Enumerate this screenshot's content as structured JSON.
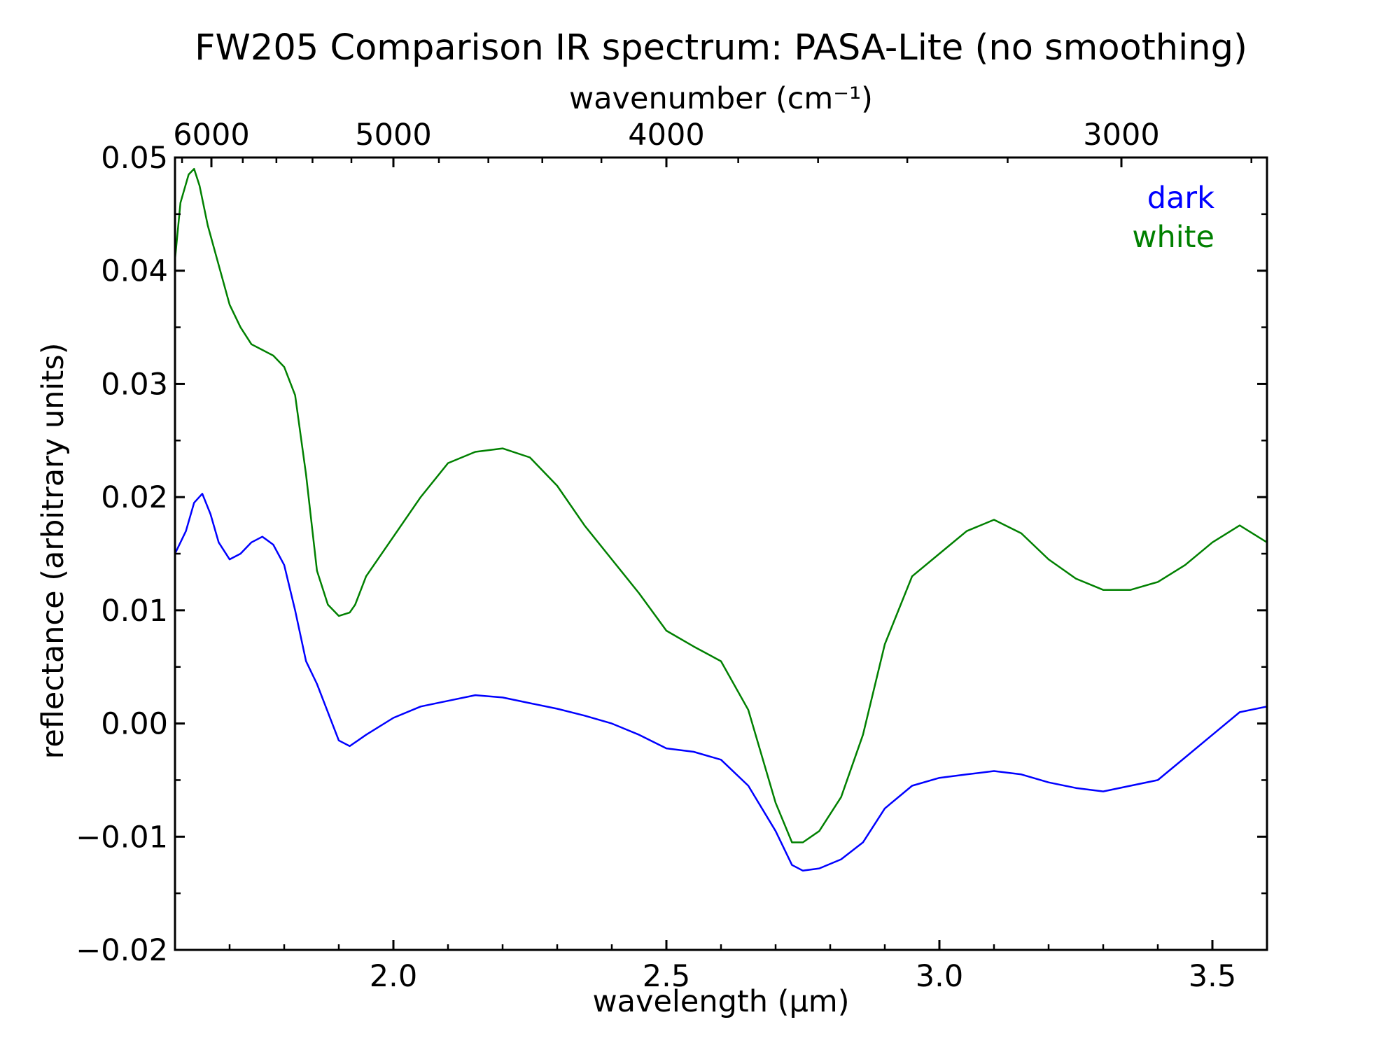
{
  "chart_data": {
    "type": "line",
    "title": "FW205 Comparison IR spectrum: PASA-Lite (no smoothing)",
    "xlabel": "wavelength (μm)",
    "ylabel": "reflectance (arbitrary units)",
    "top_xlabel": "wavenumber (cm⁻¹)",
    "xlim": [
      1.6,
      3.6
    ],
    "ylim": [
      -0.02,
      0.05
    ],
    "x_ticks": [
      {
        "value": 2.0,
        "label": "2.0"
      },
      {
        "value": 2.5,
        "label": "2.5"
      },
      {
        "value": 3.0,
        "label": "3.0"
      },
      {
        "value": 3.5,
        "label": "3.5"
      }
    ],
    "y_ticks": [
      {
        "value": -0.02,
        "label": "−0.02"
      },
      {
        "value": -0.01,
        "label": "−0.01"
      },
      {
        "value": 0.0,
        "label": "0.00"
      },
      {
        "value": 0.01,
        "label": "0.01"
      },
      {
        "value": 0.02,
        "label": "0.02"
      },
      {
        "value": 0.03,
        "label": "0.03"
      },
      {
        "value": 0.04,
        "label": "0.04"
      },
      {
        "value": 0.05,
        "label": "0.05"
      }
    ],
    "top_ticks": [
      {
        "value": 6000,
        "label": "6000"
      },
      {
        "value": 5000,
        "label": "5000"
      },
      {
        "value": 4000,
        "label": "4000"
      },
      {
        "value": 3000,
        "label": "3000"
      }
    ],
    "legend_placement": "top-right",
    "grid": false,
    "series": [
      {
        "name": "dark",
        "color": "#0000ff",
        "x": [
          1.6,
          1.62,
          1.635,
          1.65,
          1.665,
          1.68,
          1.7,
          1.72,
          1.74,
          1.76,
          1.78,
          1.8,
          1.82,
          1.84,
          1.86,
          1.88,
          1.9,
          1.92,
          1.95,
          2.0,
          2.05,
          2.1,
          2.15,
          2.2,
          2.25,
          2.3,
          2.35,
          2.4,
          2.45,
          2.5,
          2.55,
          2.6,
          2.65,
          2.7,
          2.73,
          2.75,
          2.78,
          2.82,
          2.86,
          2.9,
          2.95,
          3.0,
          3.05,
          3.1,
          3.15,
          3.2,
          3.25,
          3.3,
          3.35,
          3.4,
          3.45,
          3.5,
          3.55,
          3.6
        ],
        "y": [
          0.015,
          0.017,
          0.0195,
          0.0203,
          0.0185,
          0.016,
          0.0145,
          0.015,
          0.016,
          0.0165,
          0.0158,
          0.014,
          0.01,
          0.0055,
          0.0035,
          0.001,
          -0.0015,
          -0.002,
          -0.001,
          0.0005,
          0.0015,
          0.002,
          0.0025,
          0.0023,
          0.0018,
          0.0013,
          0.0007,
          0.0,
          -0.001,
          -0.0022,
          -0.0025,
          -0.0032,
          -0.0055,
          -0.0095,
          -0.0125,
          -0.013,
          -0.0128,
          -0.012,
          -0.0105,
          -0.0075,
          -0.0055,
          -0.0048,
          -0.0045,
          -0.0042,
          -0.0045,
          -0.0052,
          -0.0057,
          -0.006,
          -0.0055,
          -0.005,
          -0.003,
          -0.001,
          0.001,
          0.0015
        ]
      },
      {
        "name": "white",
        "color": "#008000",
        "x": [
          1.6,
          1.61,
          1.625,
          1.635,
          1.645,
          1.66,
          1.68,
          1.7,
          1.72,
          1.74,
          1.76,
          1.78,
          1.8,
          1.82,
          1.84,
          1.86,
          1.88,
          1.9,
          1.92,
          1.93,
          1.95,
          2.0,
          2.05,
          2.1,
          2.15,
          2.2,
          2.25,
          2.3,
          2.35,
          2.4,
          2.45,
          2.5,
          2.55,
          2.6,
          2.65,
          2.7,
          2.73,
          2.75,
          2.78,
          2.82,
          2.86,
          2.9,
          2.95,
          3.0,
          3.05,
          3.1,
          3.15,
          3.2,
          3.25,
          3.3,
          3.35,
          3.4,
          3.45,
          3.5,
          3.55,
          3.6
        ],
        "y": [
          0.041,
          0.046,
          0.0485,
          0.049,
          0.0475,
          0.044,
          0.0405,
          0.037,
          0.035,
          0.0335,
          0.033,
          0.0325,
          0.0315,
          0.029,
          0.022,
          0.0135,
          0.0105,
          0.0095,
          0.0098,
          0.0105,
          0.013,
          0.0165,
          0.02,
          0.023,
          0.024,
          0.0243,
          0.0235,
          0.021,
          0.0175,
          0.0145,
          0.0115,
          0.0082,
          0.0068,
          0.0055,
          0.0012,
          -0.007,
          -0.0105,
          -0.0105,
          -0.0095,
          -0.0065,
          -0.001,
          0.007,
          0.013,
          0.015,
          0.017,
          0.018,
          0.0168,
          0.0145,
          0.0128,
          0.0118,
          0.0118,
          0.0125,
          0.014,
          0.016,
          0.0175,
          0.016
        ]
      }
    ]
  }
}
